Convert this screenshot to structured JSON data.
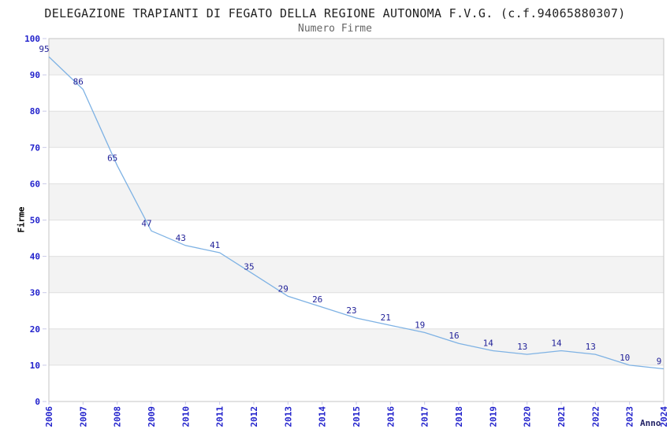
{
  "header": {
    "title": "DELEGAZIONE TRAPIANTI DI FEGATO DELLA REGIONE AUTONOMA F.V.G. (c.f.94065880307)",
    "subtitle": "Numero Firme"
  },
  "chart_data": {
    "type": "line",
    "title": "DELEGAZIONE TRAPIANTI DI FEGATO DELLA REGIONE AUTONOMA F.V.G. (c.f.94065880307)",
    "subtitle": "Numero Firme",
    "xlabel": "Anno",
    "ylabel": "Firme",
    "categories": [
      "2006",
      "2007",
      "2008",
      "2009",
      "2010",
      "2011",
      "2012",
      "2013",
      "2014",
      "2015",
      "2016",
      "2017",
      "2018",
      "2019",
      "2020",
      "2021",
      "2022",
      "2023",
      "2024"
    ],
    "values": [
      95,
      86,
      65,
      47,
      43,
      41,
      35,
      29,
      26,
      23,
      21,
      19,
      16,
      14,
      13,
      14,
      13,
      10,
      9
    ],
    "ylim": [
      0,
      100
    ],
    "ytick_step": 10,
    "grid": "horizontal",
    "banded_background": true,
    "legend_position": "none",
    "point_labels_visible": true
  },
  "style": {
    "line_color": "#7EB2E4",
    "point_label_color": "#222299",
    "axis_tick_label_color": "#2222CC",
    "xlabel_color": "#222266",
    "ylabel_color": "#000000",
    "title_color": "#222222",
    "subtitle_color": "#666666",
    "band_color": "#F3F3F3",
    "grid_color": "#E0E0E0",
    "border_color": "#C6C6C6",
    "tick_mark_color": "#C9C9E8",
    "background_color": "#FFFFFF"
  }
}
